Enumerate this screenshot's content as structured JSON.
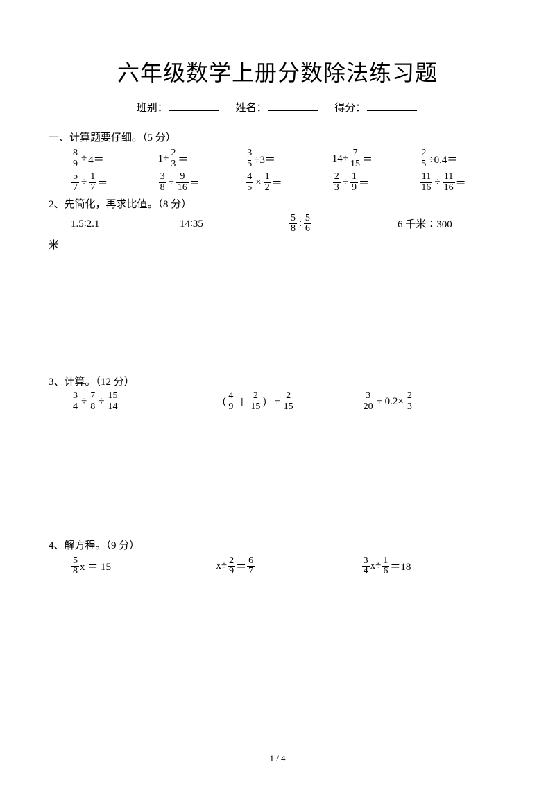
{
  "title": "六年级数学上册分数除法练习题",
  "info": {
    "class_label": "班别：",
    "name_label": "姓名：",
    "score_label": "得分："
  },
  "s1": {
    "head": "一、计算题要仔细。（5 分）",
    "r1": {
      "a": {
        "n1": "8",
        "d1": "9",
        "op": "÷",
        "t": "4＝"
      },
      "b": {
        "pre": "1÷",
        "n": "2",
        "d": "3",
        "post": " ＝"
      },
      "c": {
        "n": "3",
        "d": "5",
        "post": "÷3＝"
      },
      "d": {
        "pre": "14÷",
        "n": "7",
        "d": "15",
        "post": " ＝"
      },
      "e": {
        "n": "2",
        "d": "5",
        "post": "÷0.4＝"
      }
    },
    "r2": {
      "a": {
        "n1": "5",
        "d1": "7",
        "op": "÷",
        "n2": "1",
        "d2": "7",
        "post": "＝"
      },
      "b": {
        "n1": "3",
        "d1": "8",
        "op": "÷",
        "n2": "9",
        "d2": "16",
        "post": " ＝"
      },
      "c": {
        "n1": "4",
        "d1": "5",
        "op": "×",
        "n2": "1",
        "d2": "2",
        "post": " ＝"
      },
      "d": {
        "n1": "2",
        "d1": "3",
        "op": "÷",
        "n2": "1",
        "d2": "9",
        "post": " ＝"
      },
      "e": {
        "n1": "11",
        "d1": "16",
        "op": "÷",
        "n2": "11",
        "d2": "16",
        "post": "＝"
      }
    }
  },
  "s2": {
    "head": "2、先简化，再求比值。（8 分）",
    "a": "1.5∶2.1",
    "b": "14∶35",
    "c": {
      "n1": "5",
      "d1": "8",
      "mid": "∶",
      "n2": "5",
      "d2": "6"
    },
    "d": "6 千米∶300",
    "tail": "米"
  },
  "s3": {
    "head": "3、计算。（12 分）",
    "a": {
      "n1": "3",
      "d1": "4",
      "op1": "÷",
      "n2": "7",
      "d2": "8",
      "op2": "÷",
      "n3": "15",
      "d3": "14"
    },
    "b": {
      "lp": "（",
      "n1": "4",
      "d1": "9",
      "op1": "＋",
      "n2": "2",
      "d2": "15",
      "rp": "）",
      "op2": "÷",
      "n3": "2",
      "d3": "15"
    },
    "c": {
      "n1": "3",
      "d1": "20",
      "mid": "÷ 0.2×",
      "n2": "2",
      "d2": "3"
    }
  },
  "s4": {
    "head": "4、解方程。（9 分）",
    "a": {
      "n": "5",
      "d": "8",
      "post": "x ＝ 15"
    },
    "b": {
      "pre": "x÷",
      "n1": "2",
      "d1": "9",
      "mid": "＝",
      "n2": "6",
      "d2": "7"
    },
    "c": {
      "n1": "3",
      "d1": "4",
      "mid1": "x÷",
      "n2": "1",
      "d2": "6",
      "post": "＝18"
    }
  },
  "pagenum": "1 / 4"
}
